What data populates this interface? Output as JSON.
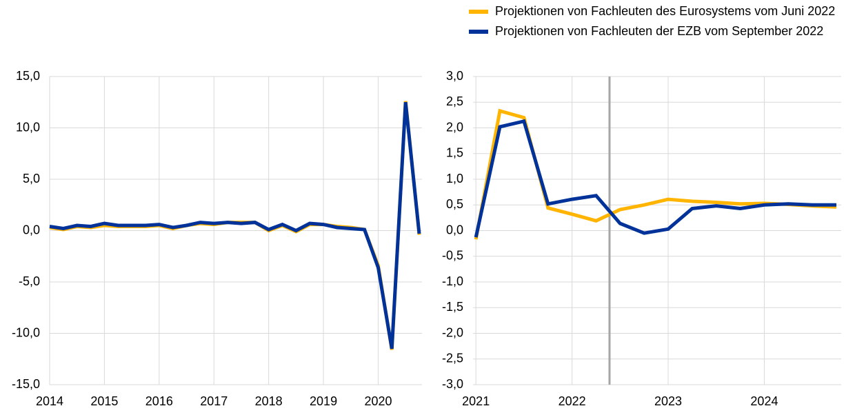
{
  "chart_data": [
    {
      "type": "line",
      "x": [
        2014,
        2014.25,
        2014.5,
        2014.75,
        2015,
        2015.25,
        2015.5,
        2015.75,
        2016,
        2016.25,
        2016.5,
        2016.75,
        2017,
        2017.25,
        2017.5,
        2017.75,
        2018,
        2018.25,
        2018.5,
        2018.75,
        2019,
        2019.25,
        2019.5,
        2019.75,
        2020,
        2020.25,
        2020.5,
        2020.75
      ],
      "series": [
        {
          "color": "#ffb400",
          "values": [
            0.3,
            0.1,
            0.4,
            0.3,
            0.5,
            0.4,
            0.4,
            0.4,
            0.5,
            0.2,
            0.5,
            0.7,
            0.6,
            0.8,
            0.8,
            0.8,
            0.0,
            0.5,
            -0.1,
            0.6,
            0.6,
            0.4,
            0.3,
            0.1,
            -3.4,
            -11.6,
            12.6,
            -0.4
          ]
        },
        {
          "color": "#003299",
          "values": [
            0.4,
            0.2,
            0.5,
            0.4,
            0.7,
            0.5,
            0.5,
            0.5,
            0.6,
            0.3,
            0.5,
            0.8,
            0.7,
            0.8,
            0.7,
            0.8,
            0.1,
            0.6,
            0.0,
            0.7,
            0.6,
            0.3,
            0.2,
            0.1,
            -3.6,
            -11.5,
            12.5,
            -0.3
          ]
        }
      ],
      "xlim": [
        2014,
        2020.8
      ],
      "xticks": [
        2014,
        2015,
        2016,
        2017,
        2018,
        2019,
        2020
      ],
      "ylim": [
        -15,
        15
      ],
      "yticks": [
        {
          "value": -15,
          "label": "-15,0"
        },
        {
          "value": -10,
          "label": "-10,0"
        },
        {
          "value": -5,
          "label": "-5,0"
        },
        {
          "value": 0,
          "label": "0,0"
        },
        {
          "value": 5,
          "label": "5,0"
        },
        {
          "value": 10,
          "label": "10,0"
        },
        {
          "value": 15,
          "label": "15,0"
        }
      ],
      "grid": true
    },
    {
      "type": "line",
      "x": [
        2021,
        2021.25,
        2021.5,
        2021.75,
        2022,
        2022.25,
        2022.5,
        2022.75,
        2023,
        2023.25,
        2023.5,
        2023.75,
        2024,
        2024.25,
        2024.5,
        2024.75
      ],
      "series": [
        {
          "name": "Projektionen von Fachleuten des Eurosystems vom Juni 2022",
          "color": "#ffb400",
          "values": [
            -0.17,
            2.33,
            2.2,
            0.44,
            0.32,
            0.19,
            0.41,
            0.5,
            0.61,
            0.57,
            0.55,
            0.52,
            0.53,
            0.51,
            0.48,
            0.46
          ]
        },
        {
          "name": "Projektionen von Fachleuten der EZB vom September 2022",
          "color": "#003299",
          "values": [
            -0.13,
            2.02,
            2.13,
            0.52,
            0.61,
            0.68,
            0.14,
            -0.05,
            0.03,
            0.43,
            0.48,
            0.43,
            0.5,
            0.52,
            0.5,
            0.5
          ]
        }
      ],
      "xlim": [
        2020.97,
        2024.8
      ],
      "xticks": [
        2021,
        2022,
        2023,
        2024
      ],
      "ylim": [
        -3,
        3
      ],
      "yticks": [
        {
          "value": -3,
          "label": "-3,0"
        },
        {
          "value": -2.5,
          "label": "-2,5"
        },
        {
          "value": -2,
          "label": "-2,0"
        },
        {
          "value": -1.5,
          "label": "-1,5"
        },
        {
          "value": -1,
          "label": "-1,0"
        },
        {
          "value": -0.5,
          "label": "-0,5"
        },
        {
          "value": 0,
          "label": "0,0"
        },
        {
          "value": 0.5,
          "label": "0,5"
        },
        {
          "value": 1,
          "label": "1,0"
        },
        {
          "value": 1.5,
          "label": "1,5"
        },
        {
          "value": 2,
          "label": "2,0"
        },
        {
          "value": 2.5,
          "label": "2,5"
        },
        {
          "value": 3,
          "label": "3,0"
        }
      ],
      "vlines": [
        2022.39
      ],
      "vline_color": "#a6a6a6",
      "grid": true,
      "legend": "top"
    }
  ]
}
